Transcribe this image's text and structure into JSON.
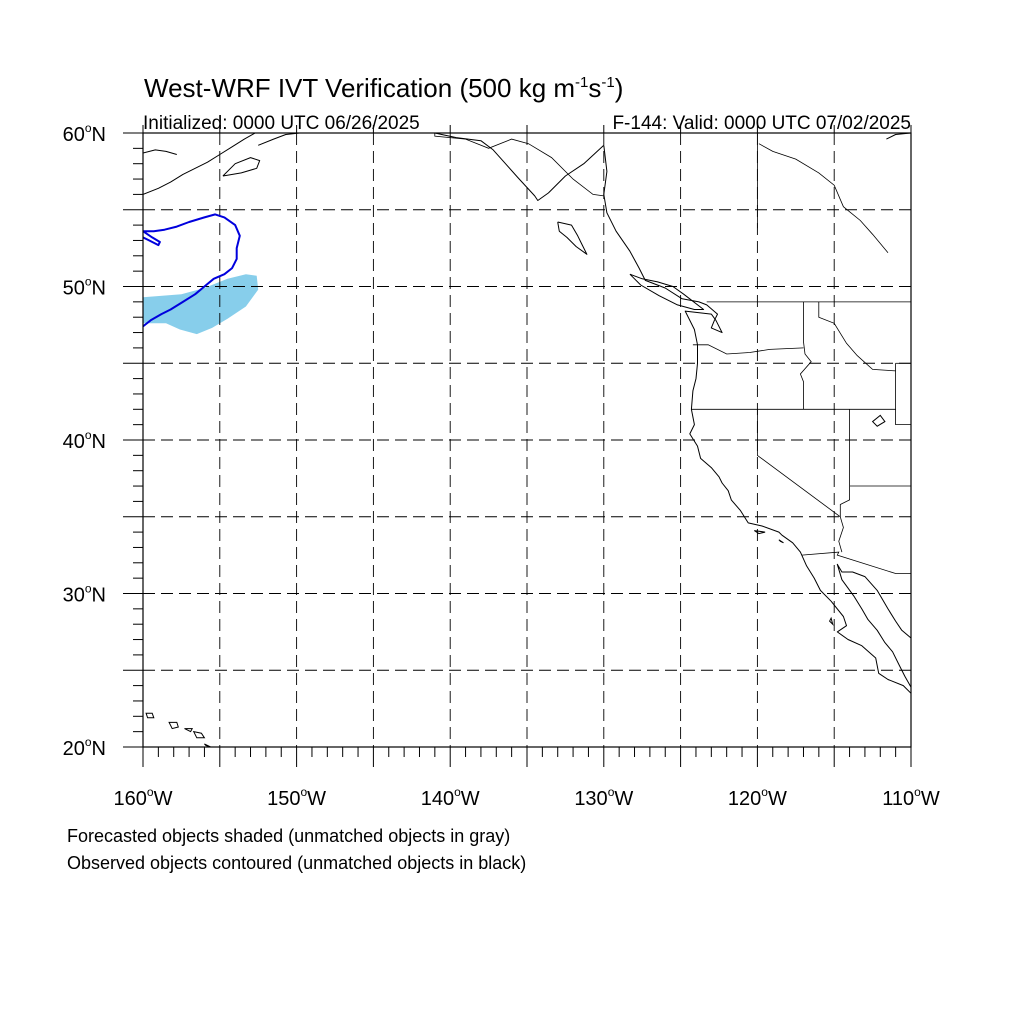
{
  "header": {
    "title_prefix": "West-WRF IVT Verification (500 kg m",
    "title_exp1": "-1",
    "title_mid": "s",
    "title_exp2": "-1",
    "title_suffix": ")",
    "initialized": "Initialized: 0000 UTC 06/26/2025",
    "valid": "F-144: Valid: 0000 UTC 07/02/2025"
  },
  "map_data": {
    "type": "map",
    "projection": "cylindrical-equidistant",
    "lon_range": [
      -160,
      -110
    ],
    "lat_range": [
      20,
      60
    ],
    "grid_lon_step": 5,
    "grid_lat_step": 5,
    "minor_tick_step": 1,
    "grid_style": "dashed",
    "lat_labels": [
      {
        "value": 60,
        "label": "60",
        "suffix": "N"
      },
      {
        "value": 50,
        "label": "50",
        "suffix": "N"
      },
      {
        "value": 40,
        "label": "40",
        "suffix": "N"
      },
      {
        "value": 30,
        "label": "30",
        "suffix": "N"
      },
      {
        "value": 20,
        "label": "20",
        "suffix": "N"
      }
    ],
    "lon_labels": [
      {
        "value": -160,
        "label": "160",
        "suffix": "W"
      },
      {
        "value": -150,
        "label": "150",
        "suffix": "W"
      },
      {
        "value": -140,
        "label": "140",
        "suffix": "W"
      },
      {
        "value": -130,
        "label": "130",
        "suffix": "W"
      },
      {
        "value": -120,
        "label": "120",
        "suffix": "W"
      },
      {
        "value": -110,
        "label": "110",
        "suffix": "W"
      }
    ],
    "forecast_object": {
      "color": "#87ceeb",
      "polygon": [
        [
          -160,
          49.3
        ],
        [
          -157.5,
          49.5
        ],
        [
          -156,
          49.9
        ],
        [
          -154.5,
          50.5
        ],
        [
          -153.3,
          50.8
        ],
        [
          -152.6,
          50.7
        ],
        [
          -152.5,
          49.8
        ],
        [
          -153.3,
          48.7
        ],
        [
          -154.5,
          47.9
        ],
        [
          -155.5,
          47.3
        ],
        [
          -156.5,
          46.9
        ],
        [
          -157.6,
          47.2
        ],
        [
          -158.5,
          47.6
        ],
        [
          -160,
          47.6
        ]
      ]
    },
    "observed_object": {
      "color": "#0000dd",
      "polyline": [
        [
          -160,
          47.4
        ],
        [
          -159.5,
          47.8
        ],
        [
          -158.8,
          48.2
        ],
        [
          -158.2,
          48.5
        ],
        [
          -157.4,
          49.0
        ],
        [
          -156.6,
          49.5
        ],
        [
          -156.0,
          50.0
        ],
        [
          -155.4,
          50.5
        ],
        [
          -154.7,
          50.8
        ],
        [
          -154.2,
          51.2
        ],
        [
          -153.9,
          51.8
        ],
        [
          -153.9,
          52.5
        ],
        [
          -153.7,
          53.3
        ],
        [
          -154.0,
          54.0
        ],
        [
          -154.7,
          54.5
        ],
        [
          -155.3,
          54.7
        ],
        [
          -156.0,
          54.5
        ],
        [
          -157.0,
          54.2
        ],
        [
          -157.8,
          53.9
        ],
        [
          -158.6,
          53.7
        ],
        [
          -159.3,
          53.6
        ],
        [
          -160,
          53.6
        ],
        [
          -159.4,
          53.2
        ],
        [
          -158.9,
          52.9
        ],
        [
          -159.0,
          52.7
        ],
        [
          -159.6,
          53.0
        ],
        [
          -160,
          53.2
        ]
      ]
    },
    "coastlines": [
      [
        [
          -130,
          59.2
        ],
        [
          -131.3,
          58.0
        ],
        [
          -132.5,
          57.2
        ],
        [
          -133.6,
          56.1
        ],
        [
          -134.3,
          55.6
        ],
        [
          -134.5,
          55.9
        ],
        [
          -135.6,
          57.1
        ],
        [
          -136.4,
          58.0
        ],
        [
          -137.2,
          58.9
        ],
        [
          -138.0,
          59.5
        ],
        [
          -139.6,
          59.7
        ],
        [
          -141.0,
          60.0
        ]
      ],
      [
        [
          -130,
          59.2
        ],
        [
          -129.8,
          57.5
        ],
        [
          -130.0,
          56.0
        ],
        [
          -129.8,
          54.8
        ],
        [
          -129.2,
          53.6
        ],
        [
          -128.3,
          52.3
        ],
        [
          -127.7,
          51.2
        ],
        [
          -127.3,
          50.4
        ],
        [
          -126.0,
          49.9
        ],
        [
          -124.9,
          49.2
        ],
        [
          -123.8,
          49.0
        ],
        [
          -123.3,
          48.8
        ],
        [
          -122.6,
          48.2
        ],
        [
          -122.8,
          47.8
        ],
        [
          -123.0,
          47.3
        ],
        [
          -122.3,
          47.0
        ],
        [
          -122.7,
          47.8
        ],
        [
          -123.0,
          48.2
        ],
        [
          -124.7,
          48.4
        ],
        [
          -124.1,
          47.2
        ],
        [
          -123.9,
          46.2
        ],
        [
          -123.9,
          45.0
        ],
        [
          -124.0,
          44.0
        ],
        [
          -124.2,
          43.2
        ],
        [
          -124.3,
          42.0
        ],
        [
          -124.1,
          41.0
        ],
        [
          -124.4,
          40.4
        ],
        [
          -123.9,
          39.6
        ],
        [
          -123.7,
          38.8
        ],
        [
          -123.0,
          38.2
        ],
        [
          -122.5,
          37.6
        ],
        [
          -122.3,
          37.2
        ],
        [
          -121.9,
          36.7
        ],
        [
          -121.7,
          36.1
        ],
        [
          -121.1,
          35.4
        ],
        [
          -120.6,
          34.6
        ],
        [
          -119.7,
          34.4
        ],
        [
          -118.6,
          34.0
        ],
        [
          -118.4,
          33.8
        ],
        [
          -117.7,
          33.3
        ],
        [
          -117.2,
          32.7
        ],
        [
          -116.8,
          31.8
        ],
        [
          -116.3,
          31.0
        ],
        [
          -115.9,
          30.2
        ],
        [
          -115.2,
          29.5
        ],
        [
          -114.4,
          28.5
        ],
        [
          -114.2,
          27.9
        ],
        [
          -114.8,
          27.5
        ],
        [
          -114.1,
          27.0
        ],
        [
          -113.2,
          26.6
        ],
        [
          -112.3,
          25.8
        ],
        [
          -112.1,
          24.8
        ],
        [
          -111.5,
          24.4
        ],
        [
          -110.5,
          24.0
        ],
        [
          -110.0,
          23.5
        ]
      ],
      [
        [
          -110.0,
          23.9
        ],
        [
          -110.4,
          24.6
        ],
        [
          -110.8,
          25.4
        ],
        [
          -111.2,
          26.2
        ],
        [
          -111.7,
          26.8
        ],
        [
          -112.2,
          27.6
        ],
        [
          -112.8,
          28.3
        ],
        [
          -113.2,
          29.0
        ],
        [
          -113.7,
          29.8
        ],
        [
          -114.5,
          30.9
        ],
        [
          -114.8,
          31.9
        ],
        [
          -114.5,
          31.4
        ],
        [
          -113.8,
          31.4
        ],
        [
          -113.0,
          31.1
        ],
        [
          -112.2,
          30.2
        ],
        [
          -111.5,
          29.0
        ],
        [
          -111.0,
          28.2
        ],
        [
          -110.6,
          27.6
        ],
        [
          -110.0,
          27.1
        ]
      ],
      [
        [
          -160,
          58.7
        ],
        [
          -159.2,
          58.9
        ],
        [
          -158.5,
          58.8
        ],
        [
          -157.8,
          58.6
        ]
      ],
      [
        [
          -160,
          56.0
        ],
        [
          -159.0,
          56.4
        ],
        [
          -158.2,
          56.8
        ],
        [
          -157.4,
          57.3
        ],
        [
          -156.6,
          57.7
        ],
        [
          -155.8,
          58.1
        ],
        [
          -155.0,
          58.6
        ],
        [
          -154.2,
          59.1
        ],
        [
          -153.4,
          59.6
        ],
        [
          -152.7,
          60.0
        ]
      ],
      [
        [
          -154.8,
          57.2
        ],
        [
          -153.6,
          57.4
        ],
        [
          -152.6,
          57.7
        ],
        [
          -152.4,
          58.2
        ],
        [
          -153.0,
          58.4
        ],
        [
          -154.0,
          58.0
        ],
        [
          -154.8,
          57.2
        ]
      ],
      [
        [
          -152.5,
          59.2
        ],
        [
          -151.5,
          59.6
        ],
        [
          -150.7,
          59.9
        ],
        [
          -149.8,
          60.0
        ]
      ],
      [
        [
          -133.0,
          54.2
        ],
        [
          -132.1,
          54.0
        ],
        [
          -131.7,
          53.3
        ],
        [
          -131.4,
          52.7
        ],
        [
          -131.1,
          52.1
        ],
        [
          -131.8,
          52.6
        ],
        [
          -132.4,
          53.2
        ],
        [
          -132.9,
          53.6
        ],
        [
          -133.0,
          54.2
        ]
      ],
      [
        [
          -128.3,
          50.8
        ],
        [
          -127.5,
          50.5
        ],
        [
          -126.5,
          50.3
        ],
        [
          -125.5,
          50.0
        ],
        [
          -124.8,
          49.5
        ],
        [
          -123.5,
          48.5
        ],
        [
          -124.1,
          48.5
        ],
        [
          -125.2,
          48.8
        ],
        [
          -126.4,
          49.4
        ],
        [
          -127.6,
          50.1
        ],
        [
          -128.3,
          50.8
        ]
      ],
      [
        [
          -111.6,
          59.6
        ],
        [
          -111.0,
          59.9
        ],
        [
          -110.0,
          60.0
        ]
      ]
    ],
    "islands": [
      [
        [
          -159.8,
          22.2
        ],
        [
          -159.4,
          22.2
        ],
        [
          -159.3,
          21.9
        ],
        [
          -159.7,
          21.9
        ],
        [
          -159.8,
          22.2
        ]
      ],
      [
        [
          -158.3,
          21.6
        ],
        [
          -157.8,
          21.6
        ],
        [
          -157.7,
          21.3
        ],
        [
          -158.1,
          21.2
        ],
        [
          -158.3,
          21.6
        ]
      ],
      [
        [
          -157.3,
          21.2
        ],
        [
          -156.8,
          21.2
        ],
        [
          -156.9,
          21.0
        ],
        [
          -157.3,
          21.2
        ]
      ],
      [
        [
          -156.7,
          21.0
        ],
        [
          -156.2,
          20.9
        ],
        [
          -156.0,
          20.6
        ],
        [
          -156.5,
          20.6
        ],
        [
          -156.7,
          21.0
        ]
      ],
      [
        [
          -156.0,
          20.2
        ],
        [
          -155.6,
          20.0
        ],
        [
          -155.2,
          19.9
        ],
        [
          -155.9,
          20.1
        ]
      ],
      [
        [
          -118.6,
          33.5
        ],
        [
          -118.3,
          33.3
        ],
        [
          -118.5,
          33.4
        ],
        [
          -118.6,
          33.5
        ]
      ],
      [
        [
          -120.2,
          34.1
        ],
        [
          -119.5,
          34.0
        ],
        [
          -119.9,
          33.9
        ],
        [
          -120.2,
          34.1
        ]
      ],
      [
        [
          -115.2,
          28.4
        ],
        [
          -115.1,
          28.0
        ],
        [
          -115.3,
          28.2
        ],
        [
          -115.2,
          28.4
        ]
      ],
      [
        [
          -112.0,
          41.6
        ],
        [
          -111.7,
          41.2
        ],
        [
          -112.2,
          40.9
        ],
        [
          -112.5,
          41.2
        ],
        [
          -112.0,
          41.6
        ]
      ]
    ],
    "borders": [
      [
        [
          -123.3,
          49.0
        ],
        [
          -110,
          49.0
        ]
      ],
      [
        [
          -141.0,
          60.0
        ],
        [
          -141.0,
          59.8
        ],
        [
          -139.0,
          59.6
        ],
        [
          -137.5,
          59.0
        ],
        [
          -136.0,
          59.6
        ],
        [
          -134.9,
          59.3
        ],
        [
          -133.4,
          58.4
        ],
        [
          -132.0,
          57.0
        ],
        [
          -130.7,
          56.0
        ],
        [
          -130.0,
          55.9
        ]
      ],
      [
        [
          -117.1,
          32.5
        ],
        [
          -114.7,
          32.7
        ],
        [
          -114.8,
          32.5
        ],
        [
          -111.0,
          31.3
        ],
        [
          -110,
          31.3
        ]
      ],
      [
        [
          -124.2,
          46.2
        ],
        [
          -123.2,
          46.2
        ],
        [
          -122.0,
          45.6
        ],
        [
          -120.5,
          45.7
        ],
        [
          -119.2,
          45.9
        ],
        [
          -117.0,
          46.0
        ]
      ],
      [
        [
          -117.0,
          49.0
        ],
        [
          -117.0,
          46.4
        ],
        [
          -116.9,
          45.6
        ],
        [
          -116.5,
          45.1
        ],
        [
          -117.2,
          44.3
        ],
        [
          -117.0,
          43.8
        ],
        [
          -117.0,
          42.0
        ]
      ],
      [
        [
          -124.3,
          42.0
        ],
        [
          -111.0,
          42.0
        ]
      ],
      [
        [
          -120.0,
          42.0
        ],
        [
          -120.0,
          39.0
        ],
        [
          -114.6,
          35.0
        ]
      ],
      [
        [
          -114.0,
          42.0
        ],
        [
          -114.0,
          36.1
        ],
        [
          -114.6,
          35.8
        ],
        [
          -114.6,
          35.0
        ],
        [
          -114.4,
          34.3
        ],
        [
          -114.7,
          33.4
        ],
        [
          -114.5,
          32.7
        ]
      ],
      [
        [
          -116.0,
          49.0
        ],
        [
          -116.0,
          48.0
        ],
        [
          -115.0,
          47.6
        ],
        [
          -114.2,
          46.3
        ],
        [
          -113.5,
          45.5
        ],
        [
          -112.5,
          44.6
        ],
        [
          -111.0,
          44.5
        ]
      ],
      [
        [
          -111.0,
          45.0
        ],
        [
          -110,
          45.0
        ]
      ],
      [
        [
          -111.0,
          45.0
        ],
        [
          -111.0,
          41.0
        ],
        [
          -110,
          41.0
        ]
      ],
      [
        [
          -114.0,
          37.0
        ],
        [
          -110,
          37.0
        ]
      ],
      [
        [
          -119.9,
          59.3
        ],
        [
          -119.0,
          58.8
        ],
        [
          -117.5,
          58.3
        ],
        [
          -116.0,
          57.4
        ],
        [
          -115.0,
          56.6
        ],
        [
          -114.4,
          55.2
        ],
        [
          -113.3,
          54.3
        ],
        [
          -112.5,
          53.4
        ],
        [
          -111.5,
          52.2
        ]
      ],
      [
        [
          -120.0,
          60.0
        ],
        [
          -120.0,
          53.8
        ]
      ]
    ]
  },
  "footnotes": {
    "line1": "Forecasted objects shaded (unmatched objects in gray)",
    "line2": "Observed objects contoured (unmatched objects in black)"
  }
}
